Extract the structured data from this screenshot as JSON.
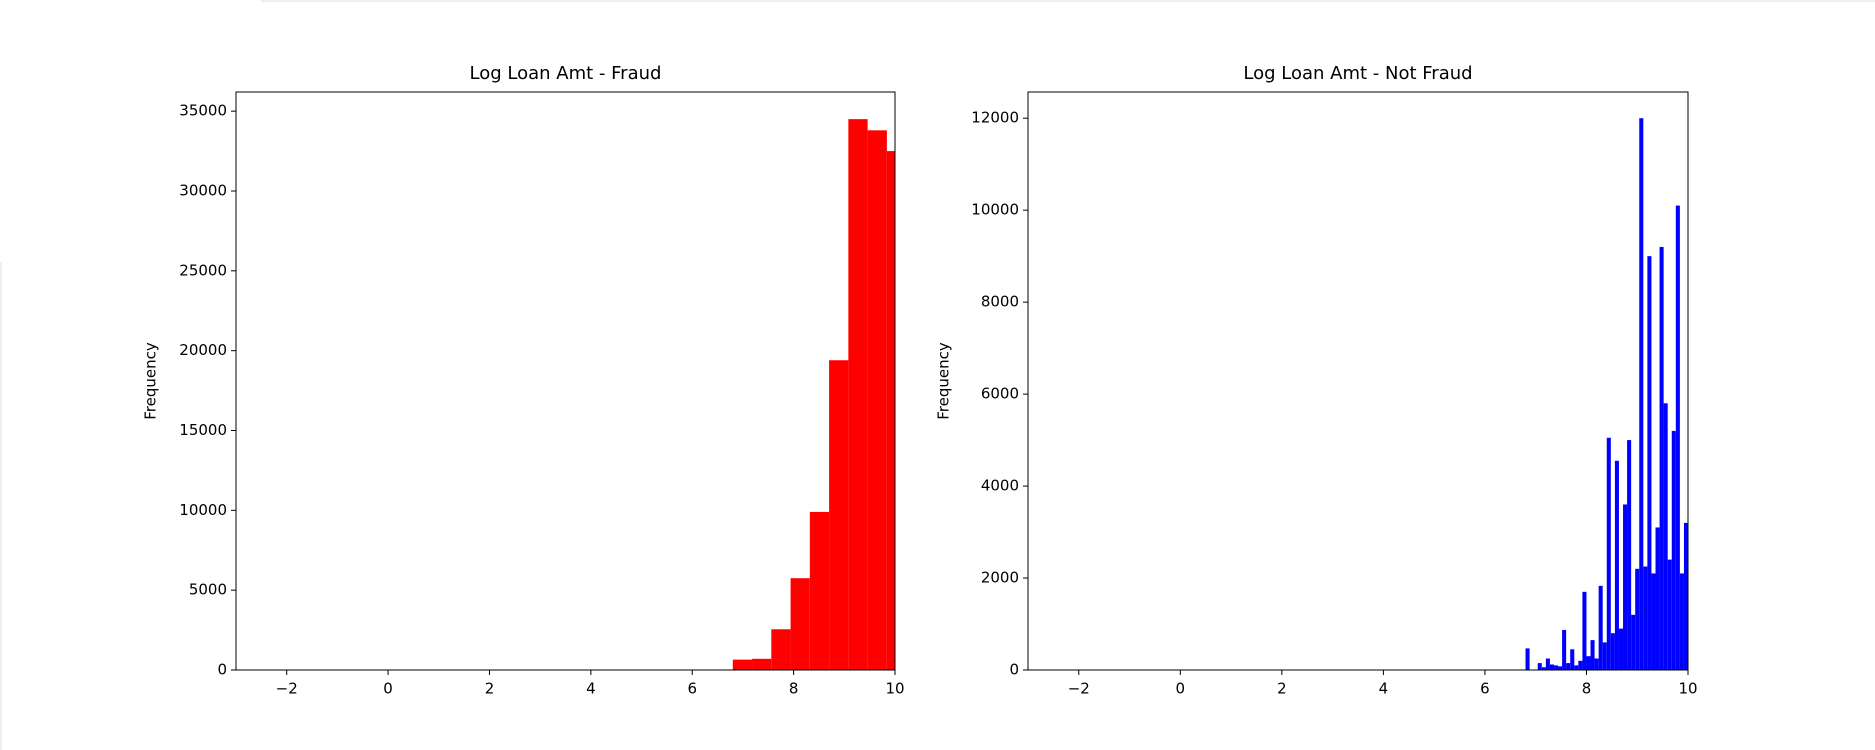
{
  "chart_data": [
    {
      "type": "histogram",
      "title": "Log Loan Amt - Fraud",
      "ylabel": "Frequency",
      "color": "#ff0000",
      "bins": [
        6.8,
        7.18,
        7.56,
        7.94,
        8.32,
        8.7,
        9.08,
        9.46,
        9.84,
        10.22
      ],
      "values": [
        650,
        700,
        2550,
        5750,
        9900,
        19400,
        34500,
        33800,
        32500
      ],
      "xlim": [
        -3,
        10
      ],
      "xticks": [
        {
          "value": -2,
          "label": "−2"
        },
        0,
        2,
        4,
        6,
        8,
        10
      ],
      "ylim": [
        0,
        36200
      ],
      "yticks": [
        0,
        5000,
        10000,
        15000,
        20000,
        25000,
        30000,
        35000
      ]
    },
    {
      "type": "histogram",
      "title": "Log Loan Amt - Not Fraud",
      "ylabel": "Frequency",
      "color": "#0000ff",
      "bins": [
        6.8,
        6.88,
        6.96,
        7.04,
        7.12,
        7.2,
        7.28,
        7.36,
        7.44,
        7.52,
        7.6,
        7.68,
        7.76,
        7.84,
        7.92,
        8.0,
        8.08,
        8.16,
        8.24,
        8.32,
        8.4,
        8.48,
        8.56,
        8.64,
        8.72,
        8.8,
        8.88,
        8.96,
        9.04,
        9.12,
        9.2,
        9.28,
        9.36,
        9.44,
        9.52,
        9.6,
        9.68,
        9.76,
        9.84,
        9.92,
        10.0
      ],
      "values": [
        470,
        0,
        0,
        150,
        60,
        250,
        120,
        100,
        80,
        870,
        150,
        450,
        100,
        200,
        1700,
        300,
        650,
        250,
        1830,
        600,
        5050,
        800,
        4550,
        900,
        3600,
        5000,
        1200,
        2200,
        12000,
        2250,
        9000,
        2100,
        3100,
        9200,
        5800,
        2400,
        5200,
        10100,
        2100,
        3200
      ],
      "xlim": [
        -3,
        10
      ],
      "xticks": [
        {
          "value": -2,
          "label": "−2"
        },
        0,
        2,
        4,
        6,
        8,
        10
      ],
      "ylim": [
        0,
        12570
      ],
      "yticks": [
        0,
        2000,
        4000,
        6000,
        8000,
        10000,
        12000
      ]
    }
  ]
}
